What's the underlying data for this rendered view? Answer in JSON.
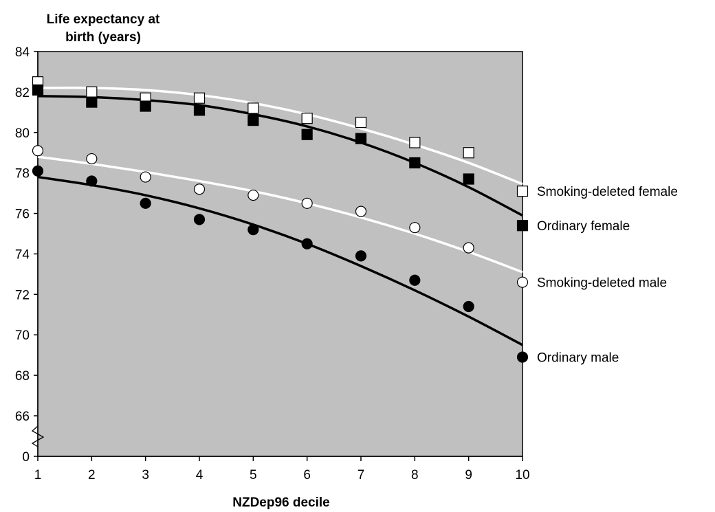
{
  "chart_data": {
    "type": "scatter",
    "ylabel_lines": [
      "Life expectancy at",
      "birth (years)"
    ],
    "xlabel": "NZDep96 decile",
    "x": [
      1,
      2,
      3,
      4,
      5,
      6,
      7,
      8,
      9,
      10
    ],
    "x_ticks": [
      "1",
      "2",
      "3",
      "4",
      "5",
      "6",
      "7",
      "8",
      "9",
      "10"
    ],
    "y_ticks": [
      "0",
      "66",
      "68",
      "70",
      "72",
      "74",
      "76",
      "78",
      "80",
      "82",
      "84"
    ],
    "ylim": [
      66,
      84
    ],
    "y_axis_break": true,
    "grid": false,
    "plot_background": "#c0c0c0",
    "series": [
      {
        "name": "Smoking-deleted female",
        "marker": "square-open",
        "values": [
          82.5,
          82.0,
          81.7,
          81.7,
          81.2,
          80.7,
          80.5,
          79.5,
          79.0,
          77.1
        ],
        "trend_color": "#ffffff",
        "trend": [
          82.2,
          82.2,
          82.1,
          81.85,
          81.45,
          80.9,
          80.2,
          79.4,
          78.5,
          77.45
        ]
      },
      {
        "name": "Ordinary female",
        "marker": "square-filled",
        "values": [
          82.1,
          81.5,
          81.3,
          81.1,
          80.6,
          79.9,
          79.7,
          78.5,
          77.7,
          75.4
        ],
        "trend_color": "#000000",
        "trend": [
          81.8,
          81.75,
          81.6,
          81.35,
          80.9,
          80.3,
          79.5,
          78.5,
          77.3,
          75.9
        ]
      },
      {
        "name": "Smoking-deleted male",
        "marker": "circle-open",
        "values": [
          79.1,
          78.7,
          77.8,
          77.2,
          76.9,
          76.5,
          76.1,
          75.3,
          74.3,
          72.6
        ],
        "trend_color": "#ffffff",
        "trend": [
          78.8,
          78.45,
          78.05,
          77.6,
          77.1,
          76.5,
          75.8,
          75.0,
          74.1,
          73.1
        ]
      },
      {
        "name": "Ordinary male",
        "marker": "circle-filled",
        "values": [
          78.1,
          77.6,
          76.5,
          75.7,
          75.2,
          74.5,
          73.9,
          72.7,
          71.4,
          68.9
        ],
        "trend_color": "#000000",
        "trend": [
          77.8,
          77.4,
          76.9,
          76.25,
          75.45,
          74.5,
          73.4,
          72.2,
          70.9,
          69.5
        ]
      }
    ]
  }
}
